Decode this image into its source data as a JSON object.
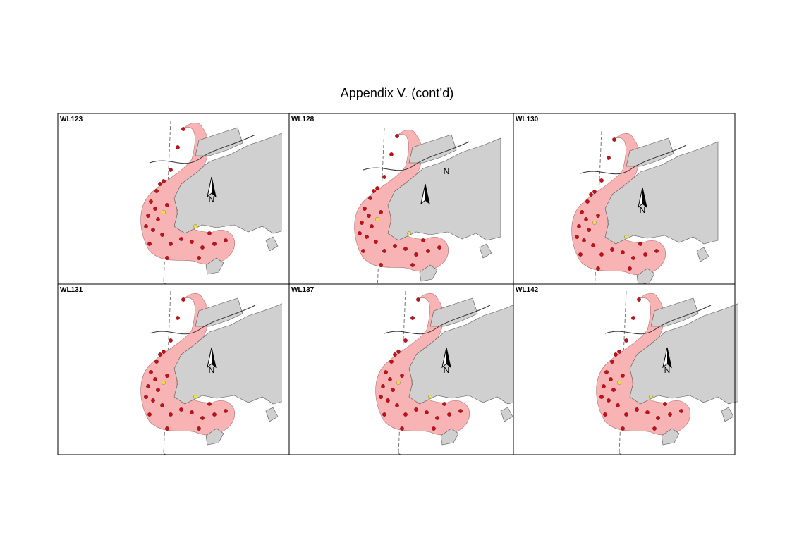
{
  "title": "Appendix V.  (cont’d)",
  "panels": [
    {
      "label": "WL123",
      "north": "N"
    },
    {
      "label": "WL128",
      "north": "N"
    },
    {
      "label": "WL130",
      "north": "N"
    },
    {
      "label": "WL131",
      "north": "N"
    },
    {
      "label": "WL137",
      "north": "N"
    },
    {
      "label": "WL142",
      "north": "N"
    }
  ]
}
